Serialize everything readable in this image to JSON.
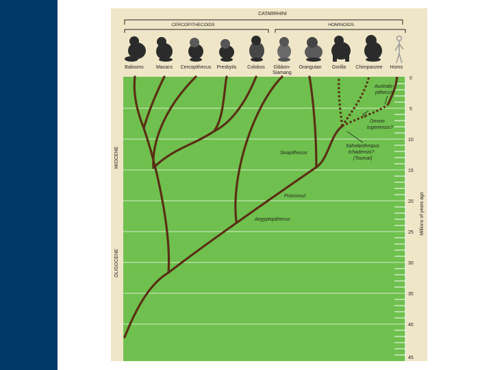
{
  "header": {
    "group_title": "CATARRHINI",
    "subgroup_left": "CERCOPITHECOIDS",
    "subgroup_right": "HOMINOIDS"
  },
  "taxa": [
    {
      "label": "Baboons"
    },
    {
      "label": "Macacs"
    },
    {
      "label": "Cercopithecus"
    },
    {
      "label": "Presbytis"
    },
    {
      "label": "Colobus"
    },
    {
      "label": "Gibbon-",
      "label2": "Siamang"
    },
    {
      "label": "Orangutan"
    },
    {
      "label": "Gorilla"
    },
    {
      "label": "Chimpanzee"
    },
    {
      "label": "Homo"
    }
  ],
  "epochs": {
    "miocene": "MIOCENE",
    "oligocene": "OLIGOCENE"
  },
  "time_axis": {
    "title": "Millions of years ago",
    "ticks": [
      "0",
      "5",
      "10",
      "15",
      "20",
      "25",
      "30",
      "35",
      "40",
      "45"
    ]
  },
  "fossils": {
    "australopithecus_1": "Australo-",
    "australopithecus_2": "pithecus",
    "orrorin_1": "Orrorin",
    "orrorin_2": "tugenensis?",
    "sahelanthropus_1": "Sahelanthropus",
    "sahelanthropus_2": "tchadensis?",
    "sahelanthropus_3": "(Toumaï)",
    "sivapithecus": "Sivapithecus",
    "proconsul": "Proconsul",
    "aegyptopithecus": "Aegyptopithecus"
  },
  "colors": {
    "chart_bg": "#6fc04e",
    "branch": "#5a2e14",
    "grid": "#d8eecb",
    "sidebar": "#003a68",
    "frame": "#efe6c8"
  }
}
